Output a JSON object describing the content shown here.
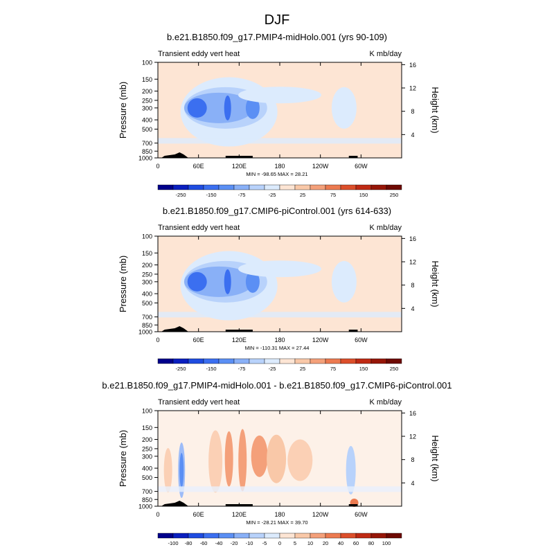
{
  "figure_title": "DJF",
  "chart_data": [
    {
      "type": "heatmap",
      "title": "b.e21.B1850.f09_g17.PMIP4-midHolo.001 (yrs 90-109)",
      "left_label": "Transient eddy vert heat",
      "right_label": "K mb/day",
      "ylabel": "Pressure (mb)",
      "ylabel_right": "Height (km)",
      "x_ticks": [
        "0",
        "60E",
        "120E",
        "180",
        "120W",
        "60W"
      ],
      "y_ticks": [
        "100",
        "150",
        "200",
        "250",
        "300",
        "400",
        "500",
        "700",
        "850",
        "1000"
      ],
      "y_ticks_right": [
        "4",
        "8",
        "12",
        "16"
      ],
      "min_max_label": "MIN = -98.65   MAX =  28.21",
      "min": -98.65,
      "max": 28.21,
      "colorbar_ticks": [
        "-250",
        "-150",
        "-75",
        "-25",
        "25",
        "75",
        "150",
        "250"
      ]
    },
    {
      "type": "heatmap",
      "title": "b.e21.B1850.f09_g17.CMIP6-piControl.001 (yrs 614-633)",
      "left_label": "Transient eddy vert heat",
      "right_label": "K mb/day",
      "ylabel": "Pressure (mb)",
      "ylabel_right": "Height (km)",
      "x_ticks": [
        "0",
        "60E",
        "120E",
        "180",
        "120W",
        "60W"
      ],
      "y_ticks": [
        "100",
        "150",
        "200",
        "250",
        "300",
        "400",
        "500",
        "700",
        "850",
        "1000"
      ],
      "y_ticks_right": [
        "4",
        "8",
        "12",
        "16"
      ],
      "min_max_label": "MIN = -110.31   MAX =  27.44",
      "min": -110.31,
      "max": 27.44,
      "colorbar_ticks": [
        "-250",
        "-150",
        "-75",
        "-25",
        "25",
        "75",
        "150",
        "250"
      ]
    },
    {
      "type": "heatmap",
      "title": "b.e21.B1850.f09_g17.PMIP4-midHolo.001 - b.e21.B1850.f09_g17.CMIP6-piControl.001",
      "left_label": "Transient eddy vert heat",
      "right_label": "K mb/day",
      "ylabel": "Pressure (mb)",
      "ylabel_right": "Height (km)",
      "x_ticks": [
        "0",
        "60E",
        "120E",
        "180",
        "120W",
        "60W"
      ],
      "y_ticks": [
        "100",
        "150",
        "200",
        "250",
        "300",
        "400",
        "500",
        "700",
        "850",
        "1000"
      ],
      "y_ticks_right": [
        "4",
        "8",
        "12",
        "16"
      ],
      "min_max_label": "MIN = -28.21   MAX =  39.70",
      "min": -28.21,
      "max": 39.7,
      "colorbar_ticks": [
        "-100",
        "-80",
        "-60",
        "-40",
        "-20",
        "-10",
        "-5",
        "0",
        "5",
        "10",
        "20",
        "40",
        "60",
        "80",
        "100"
      ]
    }
  ],
  "colors": {
    "colorbar_8": [
      "#00008b",
      "#0a1fbf",
      "#1f4ce0",
      "#3b6ff0",
      "#5b8ff4",
      "#89b0f7",
      "#b8d2fb",
      "#dcebfd",
      "#fde5d4",
      "#f9c8a8",
      "#f4a07a",
      "#ec7a50",
      "#dc4f2b",
      "#bf2a14",
      "#961608",
      "#6e0a03"
    ],
    "colorbar_15": [
      "#00008b",
      "#0a1fbf",
      "#1f4ce0",
      "#3b6ff0",
      "#5b8ff4",
      "#89b0f7",
      "#b8d2fb",
      "#dcebfd",
      "#fde5d4",
      "#f9c8a8",
      "#f4a07a",
      "#ec7a50",
      "#dc4f2b",
      "#bf2a14",
      "#961608",
      "#6e0a03"
    ]
  }
}
